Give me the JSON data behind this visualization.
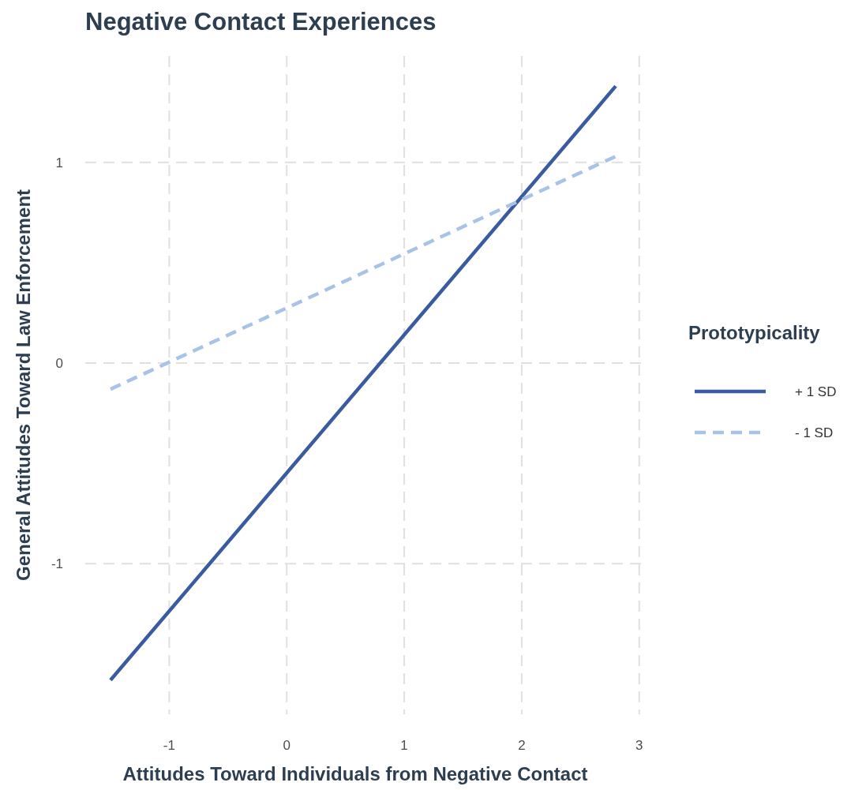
{
  "chart_data": {
    "type": "line",
    "title": "Negative Contact Experiences",
    "xlabel": "Attitudes Toward Individuals from Negative Contact",
    "ylabel": "General Attitudes Toward Law Enforcement",
    "legend_title": "Prototypicality",
    "x": [
      -1.5,
      2.8
    ],
    "series": [
      {
        "name": "+ 1 SD",
        "color": "#3a5ba0",
        "values": [
          -1.58,
          1.38
        ],
        "line_style": "solid"
      },
      {
        "name": "- 1 SD",
        "color": "#a9c3e6",
        "values": [
          -0.13,
          1.03
        ],
        "line_style": "dashed"
      }
    ],
    "xlim": [
      -1.715,
      3.015
    ],
    "ylim": [
      -1.75,
      1.53
    ],
    "xticks": [
      -1,
      0,
      1,
      2,
      3
    ],
    "yticks": [
      -1,
      0,
      1
    ],
    "grid": true,
    "legend": "right",
    "marker": "none"
  }
}
